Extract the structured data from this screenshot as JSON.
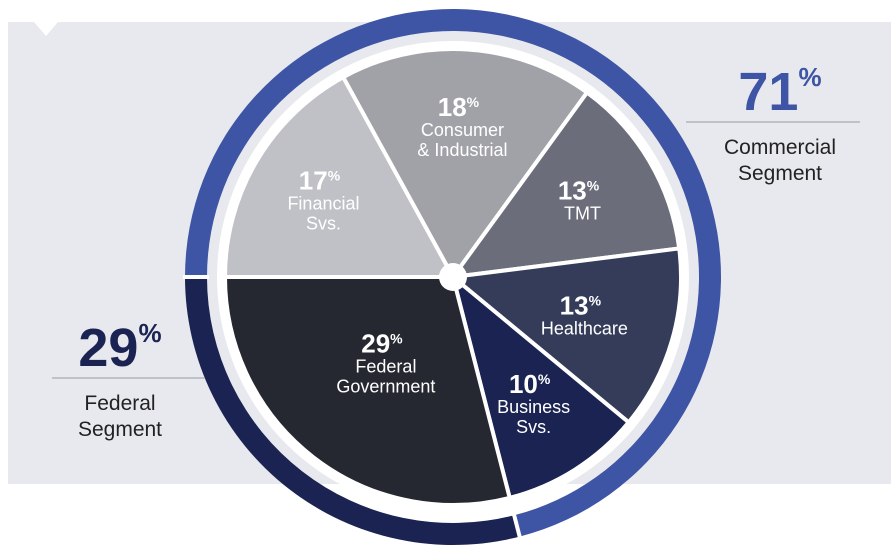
{
  "chart_data": {
    "type": "pie",
    "slices": [
      {
        "value": 18,
        "pct_label": "18",
        "label_lines": [
          "Consumer",
          "& Industrial"
        ],
        "color": "#a1a2a7"
      },
      {
        "value": 13,
        "pct_label": "13",
        "label_lines": [
          "TMT"
        ],
        "color": "#6b6d7b"
      },
      {
        "value": 13,
        "pct_label": "13",
        "label_lines": [
          "Healthcare"
        ],
        "color": "#343c59"
      },
      {
        "value": 10,
        "pct_label": "10",
        "label_lines": [
          "Business",
          "Svs."
        ],
        "color": "#1a2352"
      },
      {
        "value": 29,
        "pct_label": "29",
        "label_lines": [
          "Federal",
          "Government"
        ],
        "color": "#252830"
      },
      {
        "value": 17,
        "pct_label": "17",
        "label_lines": [
          "Financial",
          "Svs."
        ],
        "color": "#c0c1c6"
      }
    ],
    "percent_sign": "%",
    "segments": [
      {
        "name": "commercial",
        "value": 71,
        "pct_label": "71",
        "label_lines": [
          "Commercial",
          "Segment"
        ],
        "color": "#3e54a4"
      },
      {
        "name": "federal",
        "value": 29,
        "pct_label": "29",
        "label_lines": [
          "Federal",
          "Segment"
        ],
        "color": "#1a2352"
      }
    ]
  },
  "colors": {
    "panel_background": "#e8e9ee",
    "commercial_ring": "#3e54a4",
    "federal_ring": "#1a2352",
    "commercial_text": "#3e54a4",
    "federal_text": "#1a2352",
    "label_text": "#222222"
  }
}
